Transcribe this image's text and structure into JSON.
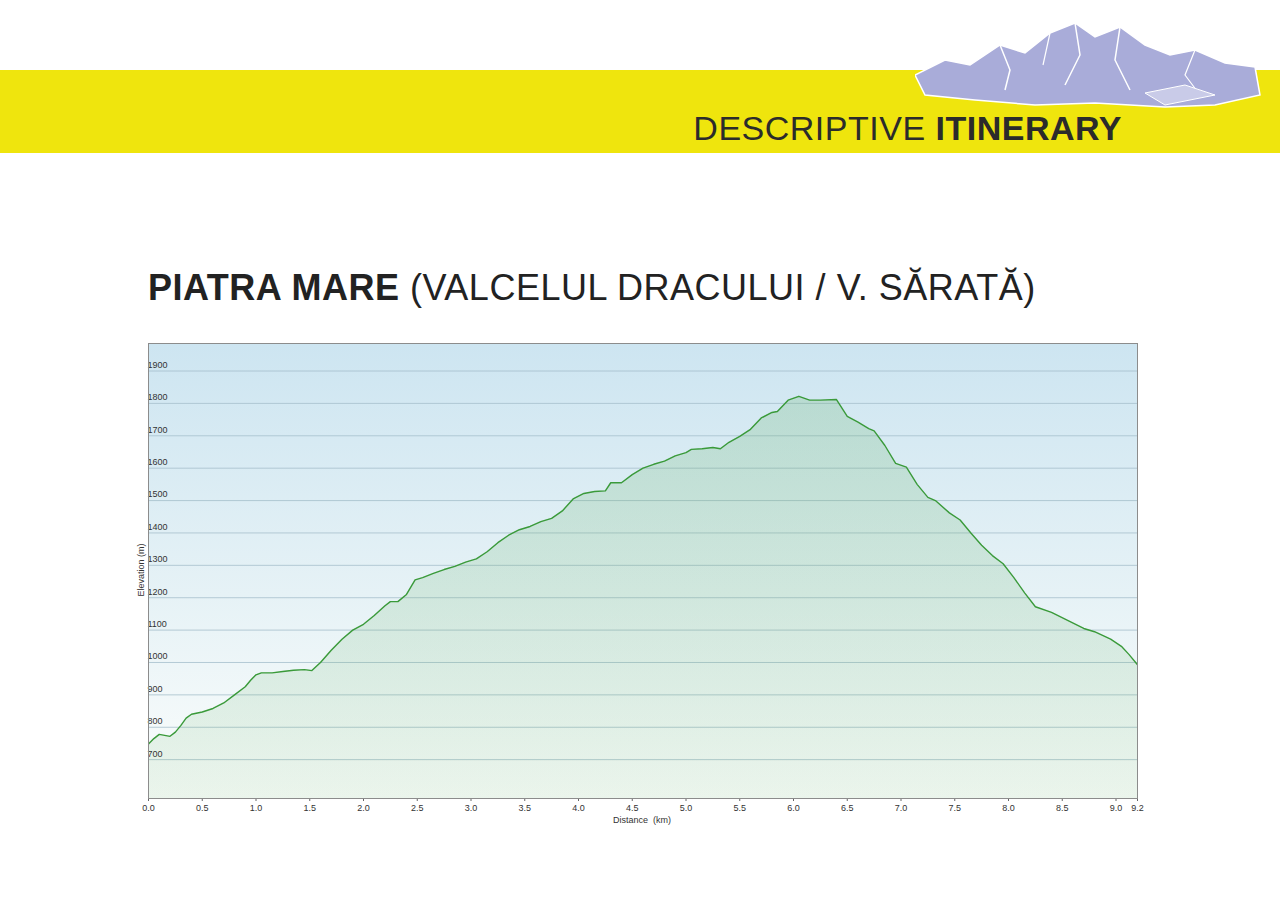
{
  "header": {
    "label_light": "DESCRIPTIVE",
    "label_bold": "ITINERARY"
  },
  "chart_data": {
    "type": "area",
    "title": "PIATRA MARE",
    "subtitle": "(VALCELUL DRACULUI / V. SĂRATĂ)",
    "x_label": "Distance  (km)",
    "y_label": "Elevation (m)",
    "color": "#3a9a3a",
    "grid": true,
    "xlim": [
      0,
      9.2
    ],
    "ylim": [
      580,
      1985
    ],
    "xticks": [
      {
        "value": 0,
        "label": "0.0"
      },
      0.5,
      {
        "value": 1,
        "label": "1.0"
      },
      1.5,
      {
        "value": 2,
        "label": "2.0"
      },
      2.5,
      {
        "value": 3,
        "label": "3.0"
      },
      3.5,
      {
        "value": 4,
        "label": "4.0"
      },
      4.5,
      {
        "value": 5,
        "label": "5.0"
      },
      5.5,
      {
        "value": 6,
        "label": "6.0"
      },
      6.5,
      {
        "value": 7,
        "label": "7.0"
      },
      7.5,
      {
        "value": 8,
        "label": "8.0"
      },
      8.5,
      {
        "value": 9,
        "label": "9.0"
      },
      9.2
    ],
    "yticks": [
      700,
      800,
      900,
      1000,
      1100,
      1200,
      1300,
      1400,
      1500,
      1600,
      1700,
      1800,
      1900
    ],
    "x": [
      0.0,
      0.05,
      0.1,
      0.15,
      0.2,
      0.25,
      0.3,
      0.35,
      0.4,
      0.5,
      0.6,
      0.7,
      0.8,
      0.9,
      0.95,
      1.0,
      1.05,
      1.15,
      1.25,
      1.35,
      1.45,
      1.52,
      1.6,
      1.7,
      1.8,
      1.9,
      2.0,
      2.1,
      2.2,
      2.25,
      2.32,
      2.4,
      2.48,
      2.55,
      2.65,
      2.75,
      2.85,
      2.95,
      3.05,
      3.15,
      3.25,
      3.35,
      3.45,
      3.55,
      3.65,
      3.75,
      3.85,
      3.95,
      4.05,
      4.15,
      4.25,
      4.3,
      4.4,
      4.5,
      4.6,
      4.7,
      4.8,
      4.9,
      5.0,
      5.05,
      5.15,
      5.25,
      5.32,
      5.4,
      5.5,
      5.6,
      5.7,
      5.8,
      5.85,
      5.95,
      6.05,
      6.15,
      6.25,
      6.4,
      6.5,
      6.6,
      6.7,
      6.75,
      6.85,
      6.95,
      7.05,
      7.15,
      7.25,
      7.32,
      7.45,
      7.55,
      7.65,
      7.75,
      7.85,
      7.95,
      8.05,
      8.15,
      8.25,
      8.4,
      8.55,
      8.7,
      8.8,
      8.95,
      9.05,
      9.12,
      9.2
    ],
    "values": [
      748,
      765,
      778,
      775,
      772,
      785,
      805,
      828,
      840,
      847,
      858,
      875,
      900,
      925,
      945,
      962,
      968,
      968,
      972,
      976,
      978,
      975,
      1000,
      1038,
      1072,
      1100,
      1118,
      1145,
      1175,
      1188,
      1188,
      1210,
      1255,
      1262,
      1275,
      1287,
      1297,
      1310,
      1320,
      1342,
      1370,
      1393,
      1410,
      1420,
      1435,
      1445,
      1468,
      1505,
      1522,
      1528,
      1530,
      1555,
      1555,
      1580,
      1600,
      1612,
      1622,
      1638,
      1648,
      1658,
      1660,
      1664,
      1660,
      1680,
      1698,
      1720,
      1755,
      1772,
      1775,
      1810,
      1822,
      1810,
      1810,
      1812,
      1760,
      1742,
      1722,
      1715,
      1670,
      1615,
      1603,
      1550,
      1510,
      1500,
      1462,
      1440,
      1400,
      1362,
      1330,
      1305,
      1262,
      1215,
      1172,
      1155,
      1130,
      1105,
      1095,
      1072,
      1050,
      1025,
      993
    ]
  }
}
